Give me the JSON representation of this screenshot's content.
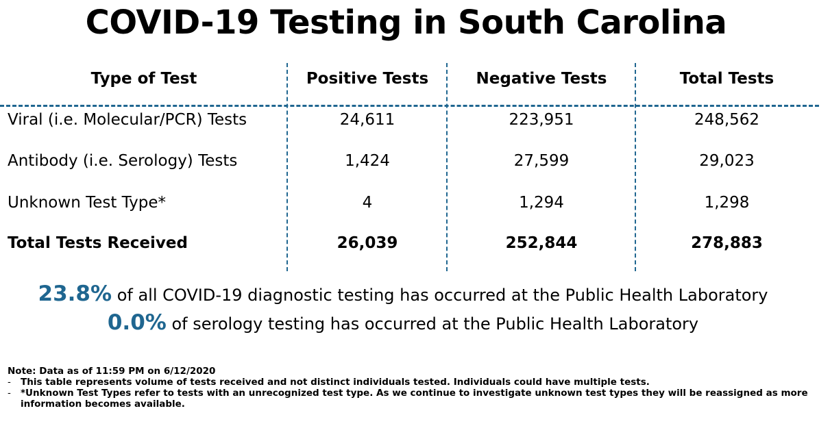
{
  "title": "COVID-19 Testing in South Carolina",
  "table": {
    "headers": [
      "Type of Test",
      "Positive Tests",
      "Negative Tests",
      "Total Tests"
    ],
    "rows": [
      {
        "type": "Viral (i.e. Molecular/PCR) Tests",
        "positive": "24,611",
        "negative": "223,951",
        "total": "248,562"
      },
      {
        "type": "Antibody (i.e. Serology) Tests",
        "positive": "1,424",
        "negative": "27,599",
        "total": "29,023"
      },
      {
        "type": "Unknown Test Type*",
        "positive": "4",
        "negative": "1,294",
        "total": "1,298"
      }
    ],
    "total_row": {
      "type": "Total Tests Received",
      "positive": "26,039",
      "negative": "252,844",
      "total": "278,883"
    }
  },
  "stats": [
    {
      "percent": "23.8%",
      "text": "of all COVID-19 diagnostic testing has occurred at the Public Health Laboratory"
    },
    {
      "percent": "0.0%",
      "text": "of serology testing has occurred at the Public Health Laboratory"
    }
  ],
  "notes": {
    "heading": "Note: Data as of 11:59 PM on 6/12/2020",
    "items": [
      {
        "dash": "-",
        "text": "This table represents volume of tests received and not distinct individuals tested. Individuals could have multiple tests."
      },
      {
        "dash": "-",
        "text": "*Unknown Test Types refer to tests with an unrecognized test type. As we continue to investigate unknown test types they will be reassigned as more information becomes available."
      }
    ]
  },
  "colors": {
    "accent": "#1f6690",
    "text": "#000000",
    "background": "#ffffff"
  }
}
